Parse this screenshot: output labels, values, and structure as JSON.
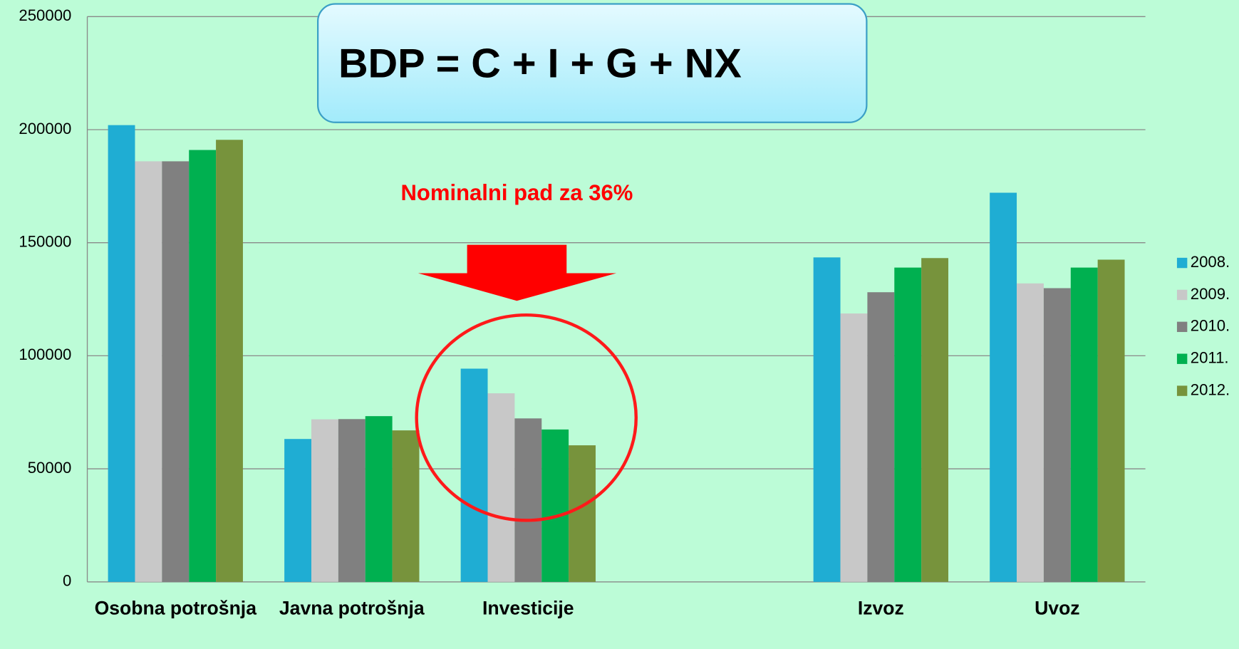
{
  "chart_data": {
    "type": "bar",
    "title": "BDP = C + I + G + NX",
    "annotation": "Nominalni pad za 36%",
    "categories": [
      "Osobna potrošnja",
      "Javna potrošnja",
      "Investicije",
      null,
      "Izvoz",
      "Uvoz"
    ],
    "series": [
      {
        "name": "2008.",
        "color": "#1fadd3",
        "values": [
          202000,
          63200,
          94300,
          null,
          143500,
          172100
        ]
      },
      {
        "name": "2009.",
        "color": "#c8c8c8",
        "values": [
          186000,
          71900,
          83400,
          null,
          118700,
          132000
        ]
      },
      {
        "name": "2010.",
        "color": "#808080",
        "values": [
          186000,
          72000,
          72300,
          null,
          128100,
          129900
        ]
      },
      {
        "name": "2011.",
        "color": "#00b050",
        "values": [
          191000,
          73300,
          67400,
          null,
          139000,
          139000
        ]
      },
      {
        "name": "2012.",
        "color": "#77933c",
        "values": [
          195500,
          67000,
          60400,
          null,
          143200,
          142500
        ]
      }
    ],
    "ylim": [
      0,
      250000
    ],
    "yticks": [
      0,
      50000,
      100000,
      150000,
      200000,
      250000
    ],
    "grid": true,
    "legend": "right"
  }
}
